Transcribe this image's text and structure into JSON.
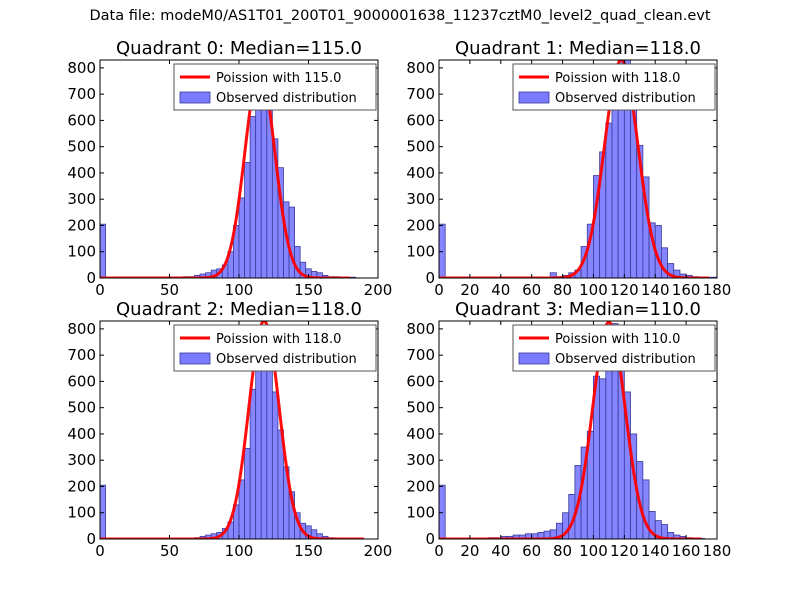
{
  "suptitle": "Data file: modeM0/AS1T01_200T01_9000001638_11237cztM0_level2_quad_clean.evt",
  "colors": {
    "bar_fill": "#7b7bff",
    "bar_edge": "#3a3a9a",
    "poisson_line": "#ff0000",
    "axis": "#000000",
    "legend_edge": "#555555"
  },
  "chart_data": [
    {
      "type": "bar",
      "title": "Quadrant 0: Median=115.0",
      "xlim": [
        0,
        200
      ],
      "ylim": [
        0,
        830
      ],
      "xticks": [
        "0",
        "50",
        "100",
        "150",
        "200"
      ],
      "yticks": [
        "0",
        "100",
        "200",
        "300",
        "400",
        "500",
        "600",
        "700",
        "800"
      ],
      "legend": {
        "location": "top-right",
        "line_label": "Poission with 115.0",
        "bar_label": "Observed distribution"
      },
      "bin_width": 4,
      "bins": [
        [
          0,
          205
        ],
        [
          60,
          5
        ],
        [
          64,
          5
        ],
        [
          68,
          10
        ],
        [
          72,
          15
        ],
        [
          76,
          20
        ],
        [
          80,
          30
        ],
        [
          84,
          35
        ],
        [
          88,
          50
        ],
        [
          92,
          100
        ],
        [
          96,
          200
        ],
        [
          100,
          305
        ],
        [
          104,
          440
        ],
        [
          108,
          615
        ],
        [
          112,
          680
        ],
        [
          116,
          760
        ],
        [
          120,
          720
        ],
        [
          124,
          530
        ],
        [
          128,
          420
        ],
        [
          132,
          290
        ],
        [
          136,
          270
        ],
        [
          140,
          120
        ],
        [
          144,
          60
        ],
        [
          148,
          35
        ],
        [
          152,
          25
        ],
        [
          156,
          20
        ],
        [
          160,
          10
        ],
        [
          164,
          5
        ],
        [
          168,
          5
        ],
        [
          172,
          3
        ],
        [
          176,
          2
        ],
        [
          180,
          3
        ]
      ],
      "poisson_mean": 115.0,
      "poisson_peak": 795,
      "poisson_range": [
        0,
        180
      ]
    },
    {
      "type": "bar",
      "title": "Quadrant 1: Median=118.0",
      "xlim": [
        0,
        180
      ],
      "ylim": [
        0,
        830
      ],
      "xticks": [
        "0",
        "20",
        "40",
        "60",
        "80",
        "100",
        "120",
        "140",
        "160",
        "180"
      ],
      "yticks": [
        "0",
        "100",
        "200",
        "300",
        "400",
        "500",
        "600",
        "700",
        "800"
      ],
      "legend": {
        "location": "top-right",
        "line_label": "Poission with 118.0",
        "bar_label": "Observed distribution"
      },
      "bin_width": 4,
      "bins": [
        [
          0,
          205
        ],
        [
          72,
          20
        ],
        [
          76,
          5
        ],
        [
          80,
          10
        ],
        [
          84,
          20
        ],
        [
          88,
          30
        ],
        [
          92,
          120
        ],
        [
          96,
          205
        ],
        [
          100,
          390
        ],
        [
          104,
          480
        ],
        [
          108,
          590
        ],
        [
          112,
          680
        ],
        [
          116,
          835
        ],
        [
          120,
          840
        ],
        [
          124,
          690
        ],
        [
          128,
          505
        ],
        [
          132,
          385
        ],
        [
          136,
          210
        ],
        [
          140,
          200
        ],
        [
          144,
          115
        ],
        [
          148,
          55
        ],
        [
          152,
          30
        ],
        [
          156,
          15
        ],
        [
          160,
          10
        ],
        [
          164,
          5
        ],
        [
          168,
          3
        ],
        [
          172,
          2
        ],
        [
          176,
          3
        ]
      ],
      "poisson_mean": 118.0,
      "poisson_peak": 830,
      "poisson_range": [
        0,
        175
      ]
    },
    {
      "type": "bar",
      "title": "Quadrant 2: Median=118.0",
      "xlim": [
        0,
        200
      ],
      "ylim": [
        0,
        830
      ],
      "xticks": [
        "0",
        "50",
        "100",
        "150",
        "200"
      ],
      "yticks": [
        "0",
        "100",
        "200",
        "300",
        "400",
        "500",
        "600",
        "700",
        "800"
      ],
      "legend": {
        "location": "top-right",
        "line_label": "Poission with 118.0",
        "bar_label": "Observed distribution"
      },
      "bin_width": 4,
      "bins": [
        [
          0,
          205
        ],
        [
          68,
          5
        ],
        [
          72,
          10
        ],
        [
          76,
          15
        ],
        [
          80,
          20
        ],
        [
          84,
          25
        ],
        [
          88,
          40
        ],
        [
          92,
          65
        ],
        [
          96,
          130
        ],
        [
          100,
          225
        ],
        [
          104,
          345
        ],
        [
          108,
          570
        ],
        [
          112,
          650
        ],
        [
          116,
          810
        ],
        [
          120,
          730
        ],
        [
          124,
          560
        ],
        [
          128,
          415
        ],
        [
          132,
          275
        ],
        [
          136,
          180
        ],
        [
          140,
          100
        ],
        [
          144,
          60
        ],
        [
          148,
          50
        ],
        [
          152,
          35
        ],
        [
          156,
          20
        ],
        [
          160,
          10
        ],
        [
          164,
          5
        ],
        [
          168,
          3
        ]
      ],
      "poisson_mean": 118.0,
      "poisson_peak": 830,
      "poisson_range": [
        0,
        190
      ]
    },
    {
      "type": "bar",
      "title": "Quadrant 3: Median=110.0",
      "xlim": [
        0,
        180
      ],
      "ylim": [
        0,
        830
      ],
      "xticks": [
        "0",
        "20",
        "40",
        "60",
        "80",
        "100",
        "120",
        "140",
        "160",
        "180"
      ],
      "yticks": [
        "0",
        "100",
        "200",
        "300",
        "400",
        "500",
        "600",
        "700",
        "800"
      ],
      "legend": {
        "location": "top-right",
        "line_label": "Poission with 110.0",
        "bar_label": "Observed distribution"
      },
      "bin_width": 4,
      "bins": [
        [
          0,
          205
        ],
        [
          32,
          5
        ],
        [
          36,
          5
        ],
        [
          40,
          10
        ],
        [
          44,
          10
        ],
        [
          48,
          15
        ],
        [
          52,
          15
        ],
        [
          56,
          20
        ],
        [
          60,
          20
        ],
        [
          64,
          25
        ],
        [
          68,
          30
        ],
        [
          72,
          35
        ],
        [
          76,
          60
        ],
        [
          80,
          100
        ],
        [
          84,
          170
        ],
        [
          88,
          280
        ],
        [
          92,
          350
        ],
        [
          96,
          410
        ],
        [
          100,
          620
        ],
        [
          104,
          610
        ],
        [
          108,
          690
        ],
        [
          112,
          820
        ],
        [
          116,
          730
        ],
        [
          120,
          560
        ],
        [
          124,
          400
        ],
        [
          128,
          295
        ],
        [
          132,
          225
        ],
        [
          136,
          105
        ],
        [
          140,
          70
        ],
        [
          144,
          55
        ],
        [
          148,
          25
        ],
        [
          152,
          15
        ],
        [
          156,
          10
        ],
        [
          160,
          5
        ],
        [
          164,
          3
        ],
        [
          168,
          2
        ]
      ],
      "poisson_mean": 110.0,
      "poisson_peak": 825,
      "poisson_range": [
        0,
        170
      ]
    }
  ]
}
